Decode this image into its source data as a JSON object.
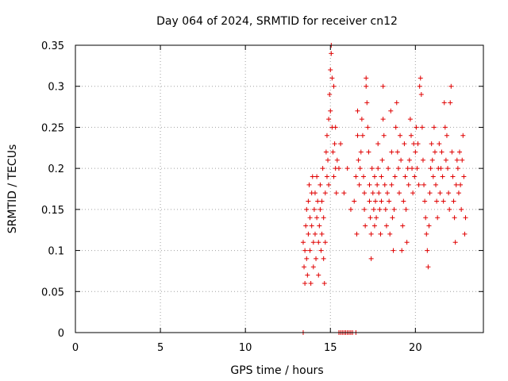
{
  "chart_data": {
    "type": "scatter",
    "title": "Day 064 of 2024, SRMTID for receiver cn12",
    "xlabel": "GPS time / hours",
    "ylabel": "SRMTID / TECUs",
    "xlim": [
      0,
      24
    ],
    "ylim": [
      0,
      0.35
    ],
    "xticks": [
      0,
      5,
      10,
      15,
      20
    ],
    "yticks": [
      0,
      0.05,
      0.1,
      0.15,
      0.2,
      0.25,
      0.3,
      0.35
    ],
    "xtick_labels": [
      "0",
      "5",
      "10",
      "15",
      "20"
    ],
    "ytick_labels": [
      "0",
      "0.05",
      "0.1",
      "0.15",
      "0.2",
      "0.25",
      "0.3",
      "0.35"
    ],
    "grid": true,
    "marker": "+",
    "color": "#e00000",
    "series": [
      {
        "name": "SRMTID",
        "points": [
          [
            13.4,
            0.0
          ],
          [
            15.5,
            0.0
          ],
          [
            15.6,
            0.0
          ],
          [
            15.7,
            0.0
          ],
          [
            15.8,
            0.0
          ],
          [
            15.9,
            0.0
          ],
          [
            16.0,
            0.0
          ],
          [
            16.1,
            0.0
          ],
          [
            16.2,
            0.0
          ],
          [
            16.3,
            0.0
          ],
          [
            16.5,
            0.0
          ],
          [
            13.4,
            0.11
          ],
          [
            13.45,
            0.08
          ],
          [
            13.5,
            0.06
          ],
          [
            13.5,
            0.1
          ],
          [
            13.55,
            0.13
          ],
          [
            13.6,
            0.15
          ],
          [
            13.6,
            0.09
          ],
          [
            13.65,
            0.07
          ],
          [
            13.7,
            0.12
          ],
          [
            13.7,
            0.16
          ],
          [
            13.75,
            0.18
          ],
          [
            13.8,
            0.14
          ],
          [
            13.8,
            0.1
          ],
          [
            13.85,
            0.06
          ],
          [
            13.9,
            0.17
          ],
          [
            13.9,
            0.13
          ],
          [
            13.95,
            0.19
          ],
          [
            14.0,
            0.11
          ],
          [
            14.0,
            0.08
          ],
          [
            14.05,
            0.15
          ],
          [
            14.1,
            0.17
          ],
          [
            14.1,
            0.12
          ],
          [
            14.15,
            0.09
          ],
          [
            14.2,
            0.14
          ],
          [
            14.2,
            0.19
          ],
          [
            14.25,
            0.16
          ],
          [
            14.3,
            0.11
          ],
          [
            14.3,
            0.07
          ],
          [
            14.35,
            0.13
          ],
          [
            14.4,
            0.18
          ],
          [
            14.4,
            0.15
          ],
          [
            14.45,
            0.1
          ],
          [
            14.5,
            0.12
          ],
          [
            14.5,
            0.16
          ],
          [
            14.55,
            0.2
          ],
          [
            14.6,
            0.14
          ],
          [
            14.6,
            0.09
          ],
          [
            14.65,
            0.06
          ],
          [
            14.7,
            0.11
          ],
          [
            14.7,
            0.17
          ],
          [
            14.75,
            0.22
          ],
          [
            14.8,
            0.19
          ],
          [
            14.8,
            0.24
          ],
          [
            14.85,
            0.21
          ],
          [
            14.9,
            0.26
          ],
          [
            14.9,
            0.18
          ],
          [
            14.95,
            0.29
          ],
          [
            15.0,
            0.27
          ],
          [
            15.0,
            0.32
          ],
          [
            15.05,
            0.35
          ],
          [
            15.05,
            0.34
          ],
          [
            15.1,
            0.31
          ],
          [
            15.1,
            0.25
          ],
          [
            15.15,
            0.22
          ],
          [
            15.2,
            0.19
          ],
          [
            15.2,
            0.3
          ],
          [
            15.25,
            0.23
          ],
          [
            15.3,
            0.2
          ],
          [
            15.3,
            0.25
          ],
          [
            15.35,
            0.17
          ],
          [
            15.4,
            0.21
          ],
          [
            15.5,
            0.2
          ],
          [
            15.6,
            0.23
          ],
          [
            15.8,
            0.17
          ],
          [
            16.0,
            0.2
          ],
          [
            16.2,
            0.15
          ],
          [
            16.4,
            0.16
          ],
          [
            16.5,
            0.19
          ],
          [
            16.55,
            0.12
          ],
          [
            16.6,
            0.24
          ],
          [
            16.6,
            0.27
          ],
          [
            16.65,
            0.21
          ],
          [
            16.7,
            0.18
          ],
          [
            16.75,
            0.2
          ],
          [
            16.8,
            0.22
          ],
          [
            16.85,
            0.26
          ],
          [
            16.9,
            0.24
          ],
          [
            16.95,
            0.19
          ],
          [
            17.0,
            0.17
          ],
          [
            17.0,
            0.15
          ],
          [
            17.05,
            0.13
          ],
          [
            17.1,
            0.31
          ],
          [
            17.1,
            0.3
          ],
          [
            17.15,
            0.28
          ],
          [
            17.2,
            0.25
          ],
          [
            17.25,
            0.22
          ],
          [
            17.3,
            0.18
          ],
          [
            17.3,
            0.16
          ],
          [
            17.35,
            0.14
          ],
          [
            17.4,
            0.12
          ],
          [
            17.4,
            0.09
          ],
          [
            17.45,
            0.2
          ],
          [
            17.5,
            0.17
          ],
          [
            17.55,
            0.15
          ],
          [
            17.6,
            0.13
          ],
          [
            17.6,
            0.19
          ],
          [
            17.65,
            0.16
          ],
          [
            17.7,
            0.14
          ],
          [
            17.75,
            0.18
          ],
          [
            17.8,
            0.2
          ],
          [
            17.8,
            0.23
          ],
          [
            17.85,
            0.17
          ],
          [
            17.9,
            0.15
          ],
          [
            17.95,
            0.12
          ],
          [
            18.0,
            0.16
          ],
          [
            18.0,
            0.19
          ],
          [
            18.05,
            0.21
          ],
          [
            18.1,
            0.3
          ],
          [
            18.1,
            0.26
          ],
          [
            18.15,
            0.24
          ],
          [
            18.2,
            0.18
          ],
          [
            18.25,
            0.15
          ],
          [
            18.3,
            0.13
          ],
          [
            18.35,
            0.17
          ],
          [
            18.4,
            0.2
          ],
          [
            18.45,
            0.16
          ],
          [
            18.5,
            0.12
          ],
          [
            18.55,
            0.27
          ],
          [
            18.6,
            0.22
          ],
          [
            18.6,
            0.18
          ],
          [
            18.65,
            0.14
          ],
          [
            18.7,
            0.1
          ],
          [
            18.75,
            0.15
          ],
          [
            18.8,
            0.19
          ],
          [
            18.85,
            0.25
          ],
          [
            18.9,
            0.28
          ],
          [
            18.95,
            0.22
          ],
          [
            19.0,
            0.2
          ],
          [
            19.05,
            0.17
          ],
          [
            19.1,
            0.24
          ],
          [
            19.15,
            0.21
          ],
          [
            19.2,
            0.1
          ],
          [
            19.25,
            0.13
          ],
          [
            19.3,
            0.16
          ],
          [
            19.35,
            0.23
          ],
          [
            19.4,
            0.19
          ],
          [
            19.45,
            0.15
          ],
          [
            19.5,
            0.11
          ],
          [
            19.55,
            0.2
          ],
          [
            19.6,
            0.18
          ],
          [
            19.65,
            0.21
          ],
          [
            19.7,
            0.26
          ],
          [
            19.75,
            0.24
          ],
          [
            19.8,
            0.2
          ],
          [
            19.85,
            0.17
          ],
          [
            19.9,
            0.23
          ],
          [
            19.95,
            0.19
          ],
          [
            20.0,
            0.22
          ],
          [
            20.05,
            0.25
          ],
          [
            20.1,
            0.2
          ],
          [
            20.15,
            0.23
          ],
          [
            20.2,
            0.18
          ],
          [
            20.25,
            0.3
          ],
          [
            20.3,
            0.31
          ],
          [
            20.35,
            0.29
          ],
          [
            20.4,
            0.25
          ],
          [
            20.45,
            0.21
          ],
          [
            20.5,
            0.18
          ],
          [
            20.55,
            0.16
          ],
          [
            20.6,
            0.14
          ],
          [
            20.65,
            0.12
          ],
          [
            20.7,
            0.1
          ],
          [
            20.75,
            0.08
          ],
          [
            20.8,
            0.13
          ],
          [
            20.85,
            0.17
          ],
          [
            20.9,
            0.2
          ],
          [
            20.95,
            0.23
          ],
          [
            21.0,
            0.21
          ],
          [
            21.05,
            0.19
          ],
          [
            21.1,
            0.25
          ],
          [
            21.15,
            0.22
          ],
          [
            21.2,
            0.18
          ],
          [
            21.25,
            0.16
          ],
          [
            21.3,
            0.14
          ],
          [
            21.35,
            0.2
          ],
          [
            21.4,
            0.23
          ],
          [
            21.45,
            0.17
          ],
          [
            21.5,
            0.2
          ],
          [
            21.55,
            0.22
          ],
          [
            21.6,
            0.19
          ],
          [
            21.65,
            0.16
          ],
          [
            21.7,
            0.28
          ],
          [
            21.75,
            0.25
          ],
          [
            21.8,
            0.21
          ],
          [
            21.85,
            0.24
          ],
          [
            21.9,
            0.2
          ],
          [
            21.95,
            0.17
          ],
          [
            22.0,
            0.15
          ],
          [
            22.05,
            0.28
          ],
          [
            22.1,
            0.3
          ],
          [
            22.15,
            0.22
          ],
          [
            22.2,
            0.19
          ],
          [
            22.25,
            0.16
          ],
          [
            22.3,
            0.14
          ],
          [
            22.35,
            0.11
          ],
          [
            22.4,
            0.18
          ],
          [
            22.45,
            0.21
          ],
          [
            22.5,
            0.2
          ],
          [
            22.55,
            0.17
          ],
          [
            22.6,
            0.22
          ],
          [
            22.65,
            0.18
          ],
          [
            22.7,
            0.15
          ],
          [
            22.75,
            0.21
          ],
          [
            22.8,
            0.24
          ],
          [
            22.85,
            0.19
          ],
          [
            22.9,
            0.12
          ],
          [
            22.95,
            0.14
          ]
        ]
      }
    ]
  }
}
